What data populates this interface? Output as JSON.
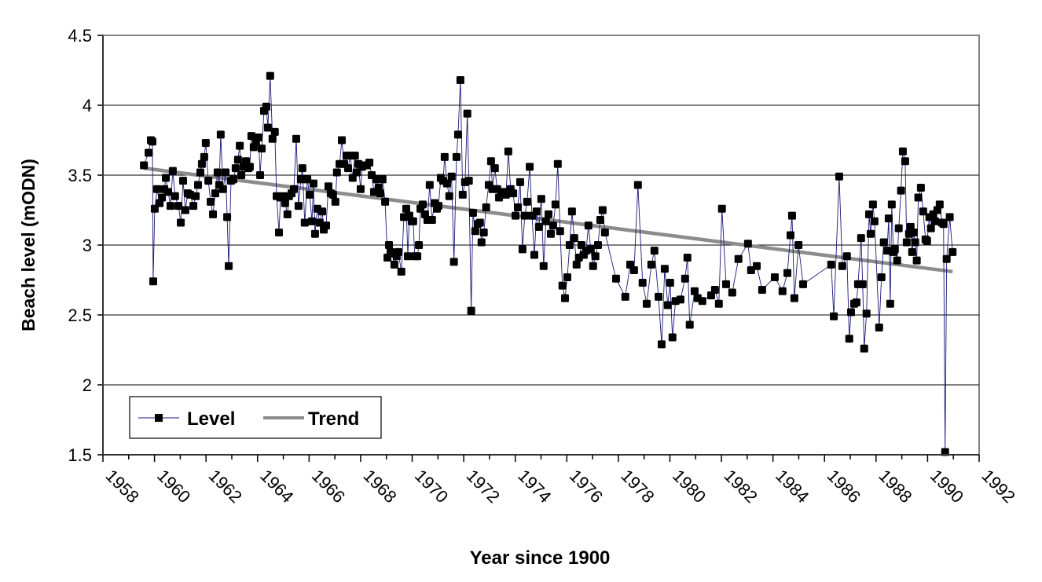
{
  "chart_data": {
    "type": "line",
    "title": "",
    "xlabel": "Year since 1900",
    "ylabel": "Beach level (mODN)",
    "xlim": [
      1958,
      1992
    ],
    "ylim": [
      1.5,
      4.5
    ],
    "x_ticks": [
      "1958",
      "1960",
      "1962",
      "1964",
      "1966",
      "1968",
      "1970",
      "1972",
      "1974",
      "1976",
      "1978",
      "1980",
      "1982",
      "1984",
      "1986",
      "1988",
      "1990",
      "1992"
    ],
    "y_ticks": [
      "1.5",
      "2",
      "2.5",
      "3",
      "3.5",
      "4",
      "4.5"
    ],
    "grid": true,
    "legend_position": "bottom-left",
    "colors": {
      "level_line": "#1a1a7a",
      "level_marker": "#000000",
      "trend": "#8c8c8c",
      "grid": "#000000",
      "frame": "#808080"
    },
    "series": [
      {
        "name": "Level",
        "x": [
          1959.59,
          1959.77,
          1959.86,
          1959.92,
          1959.95,
          1960.01,
          1960.1,
          1960.2,
          1960.29,
          1960.38,
          1960.44,
          1960.53,
          1960.62,
          1960.71,
          1960.8,
          1960.93,
          1961.02,
          1961.11,
          1961.2,
          1961.29,
          1961.38,
          1961.51,
          1961.6,
          1961.69,
          1961.78,
          1961.84,
          1961.93,
          1961.99,
          1962.09,
          1962.18,
          1962.27,
          1962.36,
          1962.45,
          1962.51,
          1962.57,
          1962.66,
          1962.76,
          1962.82,
          1962.88,
          1962.97,
          1963.06,
          1963.15,
          1963.24,
          1963.31,
          1963.37,
          1963.46,
          1963.55,
          1963.64,
          1963.7,
          1963.76,
          1963.85,
          1963.94,
          1964.04,
          1964.1,
          1964.16,
          1964.25,
          1964.34,
          1964.4,
          1964.49,
          1964.58,
          1964.67,
          1964.74,
          1964.83,
          1964.89,
          1964.98,
          1965.07,
          1965.16,
          1965.22,
          1965.32,
          1965.41,
          1965.5,
          1965.59,
          1965.68,
          1965.74,
          1965.83,
          1965.93,
          1966.02,
          1966.11,
          1966.17,
          1966.23,
          1966.32,
          1966.41,
          1966.51,
          1966.57,
          1966.66,
          1966.75,
          1966.84,
          1966.93,
          1967.02,
          1967.08,
          1967.18,
          1967.27,
          1967.36,
          1967.45,
          1967.51,
          1967.6,
          1967.69,
          1967.78,
          1967.85,
          1967.91,
          1968.0,
          1968.06,
          1968.15,
          1968.24,
          1968.34,
          1968.43,
          1968.52,
          1968.61,
          1968.7,
          1968.76,
          1968.85,
          1968.95,
          1969.04,
          1969.1,
          1969.16,
          1969.22,
          1969.31,
          1969.4,
          1969.46,
          1969.58,
          1969.68,
          1969.77,
          1969.83,
          1969.89,
          1969.98,
          1970.04,
          1970.1,
          1970.2,
          1970.26,
          1970.32,
          1970.41,
          1970.5,
          1970.59,
          1970.68,
          1970.77,
          1970.87,
          1970.96,
          1971.02,
          1971.11,
          1971.2,
          1971.26,
          1971.35,
          1971.44,
          1971.53,
          1971.62,
          1971.72,
          1971.78,
          1971.87,
          1971.96,
          1972.05,
          1972.14,
          1972.2,
          1972.29,
          1972.36,
          1972.45,
          1972.54,
          1972.63,
          1972.69,
          1972.78,
          1972.87,
          1972.97,
          1973.06,
          1973.12,
          1973.21,
          1973.3,
          1973.37,
          1973.46,
          1973.55,
          1973.64,
          1973.73,
          1973.82,
          1973.92,
          1974.01,
          1974.1,
          1974.19,
          1974.28,
          1974.37,
          1974.46,
          1974.56,
          1974.65,
          1974.74,
          1974.83,
          1974.92,
          1975.01,
          1975.1,
          1975.19,
          1975.29,
          1975.38,
          1975.47,
          1975.56,
          1975.65,
          1975.74,
          1975.83,
          1975.93,
          1976.02,
          1976.11,
          1976.2,
          1976.29,
          1976.38,
          1976.47,
          1976.57,
          1976.66,
          1976.75,
          1976.84,
          1976.93,
          1977.02,
          1977.11,
          1977.21,
          1977.3,
          1977.39,
          1977.48,
          1977.91,
          1978.27,
          1978.46,
          1978.61,
          1978.76,
          1978.94,
          1979.1,
          1979.28,
          1979.4,
          1979.56,
          1979.68,
          1979.8,
          1979.92,
          1980.01,
          1980.1,
          1980.22,
          1980.41,
          1980.59,
          1980.68,
          1980.77,
          1980.96,
          1981.08,
          1981.26,
          1981.6,
          1981.75,
          1981.9,
          1982.02,
          1982.18,
          1982.42,
          1982.66,
          1983.03,
          1983.15,
          1983.37,
          1983.58,
          1984.07,
          1984.37,
          1984.56,
          1984.68,
          1984.74,
          1984.83,
          1984.99,
          1985.17,
          1986.26,
          1986.36,
          1986.57,
          1986.69,
          1986.87,
          1986.96,
          1987.03,
          1987.15,
          1987.24,
          1987.3,
          1987.42,
          1987.48,
          1987.54,
          1987.63,
          1987.73,
          1987.79,
          1987.88,
          1987.94,
          1988.12,
          1988.21,
          1988.3,
          1988.43,
          1988.49,
          1988.55,
          1988.61,
          1988.67,
          1988.73,
          1988.82,
          1988.88,
          1988.97,
          1989.04,
          1989.13,
          1989.19,
          1989.28,
          1989.34,
          1989.4,
          1989.46,
          1989.52,
          1989.58,
          1989.64,
          1989.74,
          1989.83,
          1989.92,
          1989.98,
          1990.07,
          1990.13,
          1990.22,
          1990.29,
          1990.38,
          1990.47,
          1990.56,
          1990.62,
          1990.68,
          1990.74,
          1990.86,
          1990.97
        ],
        "y": [
          3.57,
          3.66,
          3.75,
          3.74,
          2.74,
          3.26,
          3.4,
          3.3,
          3.34,
          3.4,
          3.48,
          3.38,
          3.28,
          3.53,
          3.35,
          3.28,
          3.16,
          3.46,
          3.25,
          3.37,
          3.36,
          3.28,
          3.35,
          3.43,
          3.52,
          3.58,
          3.63,
          3.73,
          3.46,
          3.31,
          3.22,
          3.37,
          3.52,
          3.43,
          3.79,
          3.4,
          3.52,
          3.2,
          2.85,
          3.46,
          3.47,
          3.55,
          3.61,
          3.71,
          3.5,
          3.56,
          3.6,
          3.55,
          3.56,
          3.78,
          3.7,
          3.74,
          3.77,
          3.5,
          3.69,
          3.96,
          3.99,
          3.84,
          4.21,
          3.76,
          3.81,
          3.35,
          3.09,
          3.34,
          3.35,
          3.3,
          3.22,
          3.35,
          3.37,
          3.4,
          3.76,
          3.28,
          3.47,
          3.55,
          3.16,
          3.47,
          3.36,
          3.17,
          3.44,
          3.08,
          3.26,
          3.16,
          3.24,
          3.11,
          3.14,
          3.42,
          3.37,
          3.36,
          3.31,
          3.52,
          3.58,
          3.75,
          3.58,
          3.64,
          3.55,
          3.64,
          3.48,
          3.64,
          3.52,
          3.58,
          3.4,
          3.56,
          3.57,
          3.57,
          3.59,
          3.5,
          3.38,
          3.47,
          3.41,
          3.37,
          3.47,
          3.31,
          2.91,
          3.0,
          2.95,
          2.94,
          2.86,
          2.92,
          2.95,
          2.81,
          3.2,
          3.26,
          2.92,
          3.21,
          3.17,
          3.17,
          2.92,
          2.92,
          3.0,
          3.26,
          3.29,
          3.22,
          3.18,
          3.43,
          3.18,
          3.3,
          3.26,
          3.28,
          3.48,
          3.46,
          3.63,
          3.44,
          3.35,
          3.49,
          2.88,
          3.63,
          3.79,
          4.18,
          3.36,
          3.45,
          3.94,
          3.46,
          2.53,
          3.23,
          3.1,
          3.15,
          3.16,
          3.02,
          3.09,
          3.27,
          3.43,
          3.6,
          3.4,
          3.55,
          3.4,
          3.34,
          3.37,
          3.38,
          3.36,
          3.67,
          3.4,
          3.37,
          3.21,
          3.27,
          3.45,
          2.97,
          3.21,
          3.31,
          3.56,
          3.21,
          2.93,
          3.24,
          3.13,
          3.33,
          2.85,
          3.17,
          3.22,
          3.08,
          3.14,
          3.29,
          3.58,
          3.1,
          2.71,
          2.62,
          2.77,
          3.0,
          3.24,
          3.05,
          2.86,
          2.91,
          3.0,
          2.93,
          2.96,
          3.14,
          2.97,
          2.85,
          2.92,
          3.0,
          3.18,
          3.25,
          3.09,
          2.76,
          2.63,
          2.86,
          2.82,
          3.43,
          2.73,
          2.58,
          2.86,
          2.96,
          2.63,
          2.29,
          2.83,
          2.57,
          2.73,
          2.34,
          2.6,
          2.61,
          2.76,
          2.91,
          2.43,
          2.67,
          2.62,
          2.6,
          2.64,
          2.68,
          2.58,
          3.26,
          2.72,
          2.66,
          2.9,
          3.01,
          2.82,
          2.85,
          2.68,
          2.77,
          2.67,
          2.8,
          3.07,
          3.21,
          2.62,
          3.0,
          2.72,
          2.86,
          2.49,
          3.49,
          2.85,
          2.92,
          2.33,
          2.52,
          2.58,
          2.59,
          2.72,
          3.05,
          2.72,
          2.26,
          2.51,
          3.22,
          3.08,
          3.29,
          3.17,
          2.41,
          2.77,
          3.02,
          2.96,
          3.19,
          2.58,
          3.29,
          2.95,
          2.97,
          2.89,
          3.12,
          3.39,
          3.67,
          3.6,
          3.02,
          3.08,
          3.13,
          2.95,
          3.09,
          3.02,
          2.89,
          3.34,
          3.41,
          3.24,
          3.04,
          3.03,
          3.2,
          3.12,
          3.22,
          3.17,
          3.25,
          3.29,
          3.16,
          3.15,
          1.52,
          2.9,
          3.2,
          2.95
        ]
      },
      {
        "name": "Trend",
        "x": [
          1959.59,
          1990.97
        ],
        "y": [
          3.55,
          2.81
        ]
      }
    ]
  }
}
